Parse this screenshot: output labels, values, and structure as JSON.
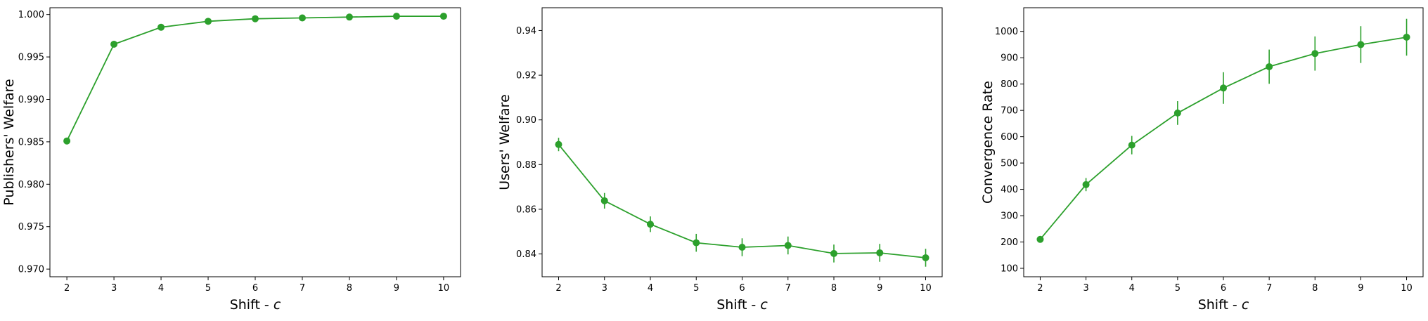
{
  "chart_data": [
    {
      "type": "line",
      "xlabel": "Shift - ",
      "xlabel_var": "c",
      "ylabel": "Publishers' Welfare",
      "xlim": [
        1.64,
        10.36
      ],
      "ylim": [
        0.9691,
        1.0008
      ],
      "xticks": [
        2,
        3,
        4,
        5,
        6,
        7,
        8,
        9,
        10
      ],
      "yticks": [
        0.97,
        0.975,
        0.98,
        0.985,
        0.99,
        0.995,
        1.0
      ],
      "ytick_labels": [
        "0.970",
        "0.975",
        "0.980",
        "0.985",
        "0.990",
        "0.995",
        "1.000"
      ],
      "color": "#2ca02c",
      "x": [
        2,
        3,
        4,
        5,
        6,
        7,
        8,
        9,
        10
      ],
      "y": [
        0.9851,
        0.9965,
        0.9985,
        0.9992,
        0.9995,
        0.9996,
        0.9997,
        0.9998,
        0.9998
      ],
      "yerr": [
        0.0003,
        0.0001,
        0.0001,
        5e-05,
        5e-05,
        5e-05,
        3e-05,
        3e-05,
        3e-05
      ]
    },
    {
      "type": "line",
      "xlabel": "Shift - ",
      "xlabel_var": "c",
      "ylabel": "Users' Welfare",
      "xlim": [
        1.64,
        10.36
      ],
      "ylim": [
        0.8298,
        0.9502
      ],
      "xticks": [
        2,
        3,
        4,
        5,
        6,
        7,
        8,
        9,
        10
      ],
      "yticks": [
        0.84,
        0.86,
        0.88,
        0.9,
        0.92,
        0.94
      ],
      "ytick_labels": [
        "0.84",
        "0.86",
        "0.88",
        "0.90",
        "0.92",
        "0.94"
      ],
      "color": "#2ca02c",
      "x": [
        2,
        3,
        4,
        5,
        6,
        7,
        8,
        9,
        10
      ],
      "y": [
        0.889,
        0.8638,
        0.8533,
        0.845,
        0.843,
        0.8438,
        0.8402,
        0.8405,
        0.8383
      ],
      "yerr": [
        0.003,
        0.0035,
        0.0035,
        0.004,
        0.004,
        0.004,
        0.004,
        0.004,
        0.004
      ]
    },
    {
      "type": "line",
      "xlabel": "Shift - ",
      "xlabel_var": "c",
      "ylabel": "Convergence Rate",
      "xlim": [
        1.64,
        10.36
      ],
      "ylim": [
        68,
        1090
      ],
      "xticks": [
        2,
        3,
        4,
        5,
        6,
        7,
        8,
        9,
        10
      ],
      "yticks": [
        100,
        200,
        300,
        400,
        500,
        600,
        700,
        800,
        900,
        1000
      ],
      "ytick_labels": [
        "100",
        "200",
        "300",
        "400",
        "500",
        "600",
        "700",
        "800",
        "900",
        "1000"
      ],
      "color": "#2ca02c",
      "x": [
        2,
        3,
        4,
        5,
        6,
        7,
        8,
        9,
        10
      ],
      "y": [
        210,
        418,
        568,
        690,
        785,
        866,
        916,
        950,
        978
      ],
      "yerr": [
        12,
        25,
        35,
        45,
        60,
        65,
        65,
        70,
        70
      ]
    }
  ]
}
